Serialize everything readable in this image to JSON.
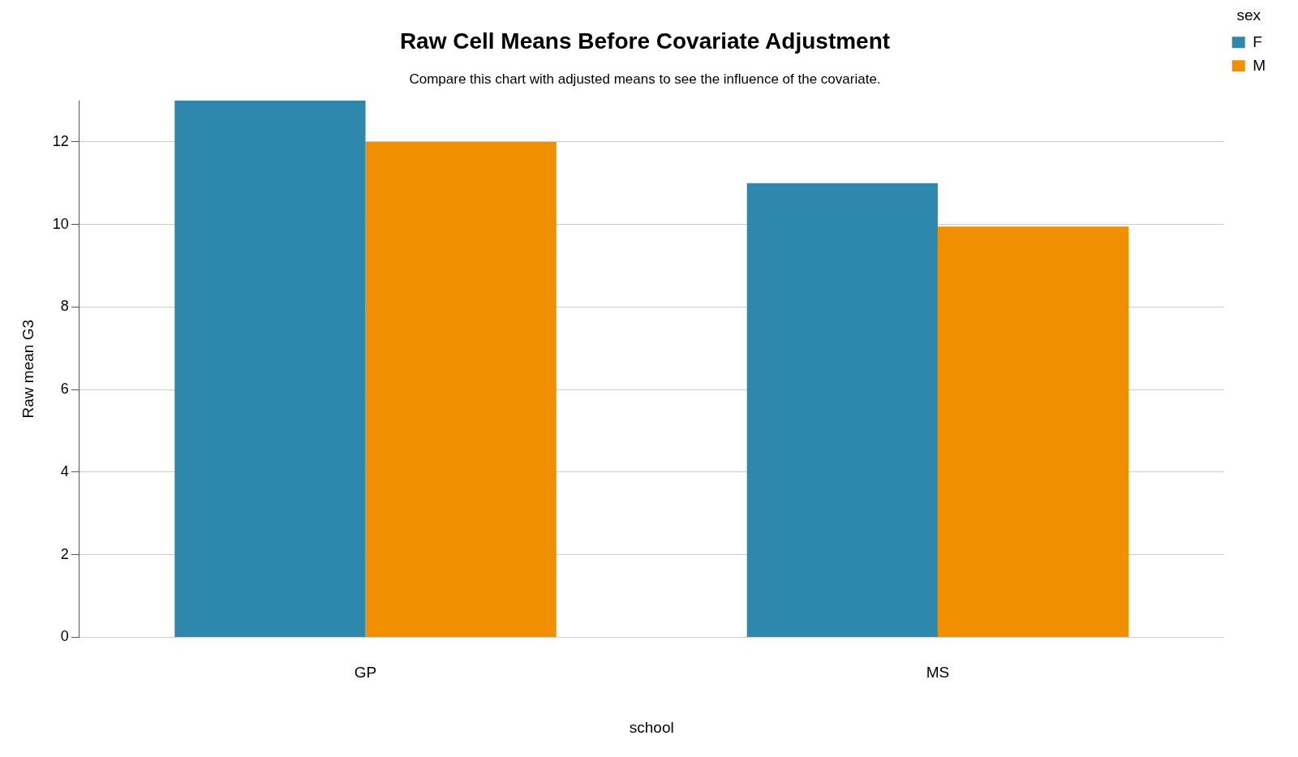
{
  "chart_data": {
    "type": "bar",
    "title": "Raw Cell Means Before Covariate Adjustment",
    "subtitle": "Compare this chart with adjusted means to see the influence of the covariate.",
    "xlabel": "school",
    "ylabel": "Raw mean G3",
    "legend_title": "sex",
    "categories": [
      "GP",
      "MS"
    ],
    "series": [
      {
        "name": "F",
        "color": "#2e88ad",
        "values": [
          13.0,
          11.0
        ]
      },
      {
        "name": "M",
        "color": "#f08f00",
        "values": [
          12.0,
          9.95
        ]
      }
    ],
    "ylim": [
      0,
      13
    ],
    "yticks": [
      0,
      2,
      4,
      6,
      8,
      10,
      12
    ],
    "grid": "y",
    "legend": "top right"
  }
}
